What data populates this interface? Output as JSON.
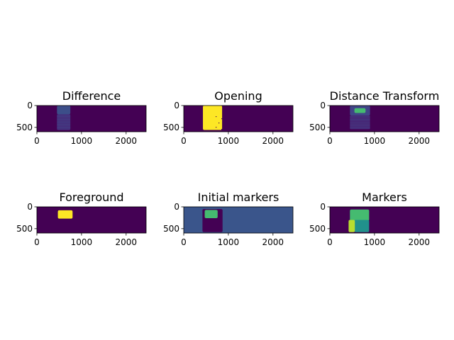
{
  "chart_data": [
    {
      "type": "heatmap",
      "title": "Difference",
      "colormap": "viridis",
      "x_ticks": [
        0,
        1000,
        2000
      ],
      "y_ticks": [
        0,
        500
      ],
      "xlim": [
        0,
        2448
      ],
      "ylim": [
        600,
        0
      ],
      "regions": [
        {
          "x": [
            450,
            750
          ],
          "y": [
            0,
            200
          ],
          "value": 0.3
        },
        {
          "x": [
            450,
            750
          ],
          "y": [
            200,
            560
          ],
          "value": 0.15,
          "pattern": "stripes"
        }
      ]
    },
    {
      "type": "heatmap",
      "title": "Opening",
      "colormap": "viridis",
      "x_ticks": [
        0,
        1000,
        2000
      ],
      "y_ticks": [
        0,
        500
      ],
      "xlim": [
        0,
        2448
      ],
      "ylim": [
        600,
        0
      ],
      "regions": [
        {
          "x": [
            430,
            860
          ],
          "y": [
            0,
            560
          ],
          "value": 1.0,
          "pattern": "speckle"
        }
      ]
    },
    {
      "type": "heatmap",
      "title": "Distance Transform",
      "colormap": "viridis",
      "x_ticks": [
        0,
        1000,
        2000
      ],
      "y_ticks": [
        0,
        500
      ],
      "xlim": [
        0,
        2448
      ],
      "ylim": [
        600,
        0
      ],
      "regions": [
        {
          "x": [
            450,
            900
          ],
          "y": [
            0,
            230
          ],
          "value": 0.25
        },
        {
          "x": [
            550,
            800
          ],
          "y": [
            60,
            170
          ],
          "value": 0.7
        },
        {
          "x": [
            450,
            900
          ],
          "y": [
            230,
            540
          ],
          "value": 0.12,
          "pattern": "stripes"
        }
      ]
    },
    {
      "type": "heatmap",
      "title": "Foreground",
      "colormap": "viridis",
      "x_ticks": [
        0,
        1000,
        2000
      ],
      "y_ticks": [
        0,
        500
      ],
      "xlim": [
        0,
        2448
      ],
      "ylim": [
        600,
        0
      ],
      "regions": [
        {
          "x": [
            470,
            800
          ],
          "y": [
            80,
            270
          ],
          "value": 1.0
        }
      ]
    },
    {
      "type": "heatmap",
      "title": "Initial markers",
      "colormap": "viridis",
      "background_value": 0.33,
      "x_ticks": [
        0,
        1000,
        2000
      ],
      "y_ticks": [
        0,
        500
      ],
      "xlim": [
        0,
        2448
      ],
      "ylim": [
        600,
        0
      ],
      "regions": [
        {
          "x": [
            420,
            870
          ],
          "y": [
            50,
            580
          ],
          "value": 0.0
        },
        {
          "x": [
            470,
            760
          ],
          "y": [
            70,
            260
          ],
          "value": 0.7
        }
      ]
    },
    {
      "type": "heatmap",
      "title": "Markers",
      "colormap": "viridis",
      "x_ticks": [
        0,
        1000,
        2000
      ],
      "y_ticks": [
        0,
        500
      ],
      "xlim": [
        0,
        2448
      ],
      "ylim": [
        600,
        0
      ],
      "regions": [
        {
          "x": [
            450,
            880
          ],
          "y": [
            60,
            320
          ],
          "value": 0.7
        },
        {
          "x": [
            550,
            880
          ],
          "y": [
            300,
            580
          ],
          "value": 0.5
        },
        {
          "x": [
            420,
            560
          ],
          "y": [
            300,
            580
          ],
          "value": 0.9
        }
      ]
    }
  ]
}
